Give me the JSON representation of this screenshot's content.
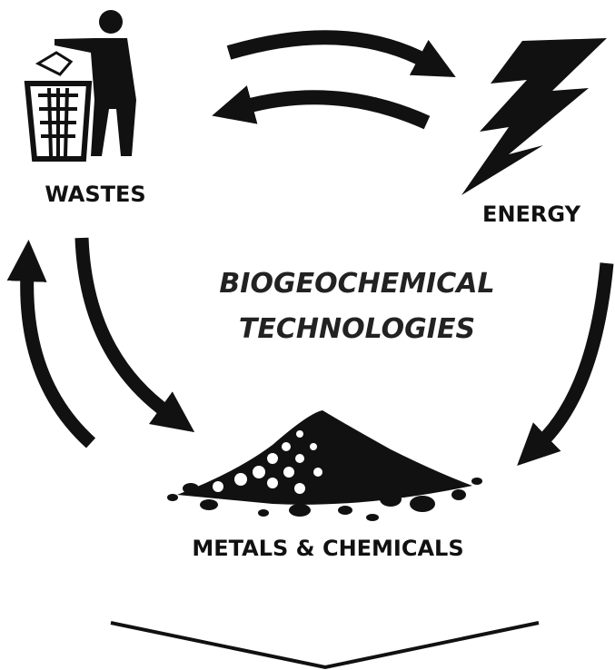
{
  "nodes": [
    {
      "label": "WASTES"
    },
    {
      "label": "ENERGY"
    },
    {
      "label": "METALS & CHEMICALS"
    }
  ],
  "center": {
    "lines": [
      "BIOGEOCHEMICAL",
      "TECHNOLOGIES"
    ]
  }
}
